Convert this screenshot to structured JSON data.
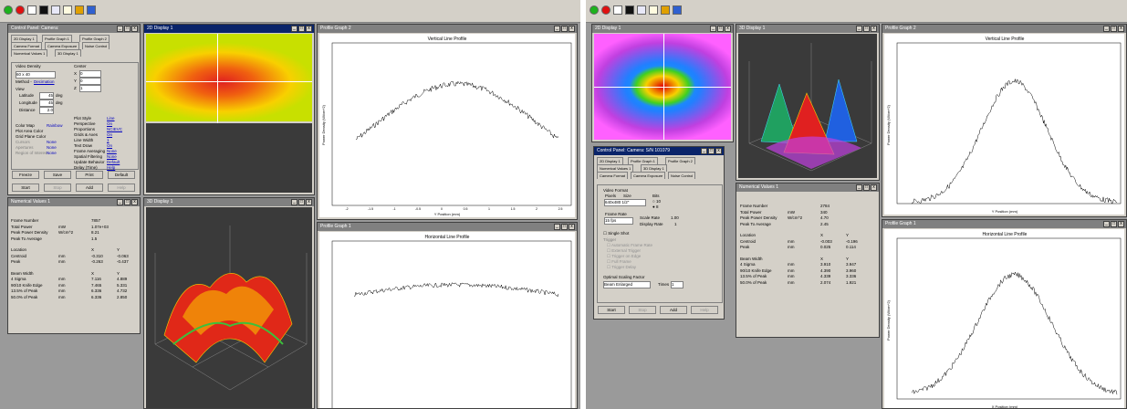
{
  "left": {
    "windows": {
      "control": "Control Panel: Camera: ",
      "display2d": "2D Display 1",
      "profile_top": "Profile Graph 2",
      "numeric": "Numerical Values 1",
      "display3d": "3D Display 1",
      "profile_bottom": "Profile Graph 1"
    },
    "tabs_row1": [
      "2D Display 1",
      "Profile Graph 1",
      "Profile Graph 2"
    ],
    "tabs_row2": [
      "Camera Format",
      "Camera Exposure",
      "Noise Control"
    ],
    "tabs_row3": [
      "Numerical Values 1",
      "3D Display 1"
    ],
    "control": {
      "video_density_label": "Video Density",
      "video_density_value": "60 x 40",
      "method_label": "Method -",
      "method_value": "Decimation",
      "view_label": "View",
      "latitude_label": "Latitude",
      "latitude_value": "45",
      "longitude_label": "Longitude",
      "longitude_value": "45",
      "distance_label": "Distance",
      "distance_value": "2.0",
      "deg": "deg",
      "center_label": "Center",
      "x_label": "X",
      "x_value": "0",
      "y_label": "Y",
      "y_value": "0",
      "z_label": "Z",
      "z_value": "1",
      "right_opts": [
        {
          "label": "Plot Style",
          "value": "Line"
        },
        {
          "label": "Perspective",
          "value": "On"
        },
        {
          "label": "Proportions",
          "value": "NCIEVC"
        },
        {
          "label": "Grids & Axes",
          "value": "On"
        },
        {
          "label": "Line Width",
          "value": "1"
        },
        {
          "label": "Text Draw",
          "value": "On"
        },
        {
          "label": "Frame Averaging",
          "value": "None"
        },
        {
          "label": "Spatial Filtering",
          "value": "None"
        },
        {
          "label": "Update Behavior",
          "value": "Default"
        },
        {
          "label": "Delay (Time)",
          "value": "Help"
        }
      ],
      "left_opts": [
        {
          "label": "Color Map",
          "value": "Rainbow"
        },
        {
          "label": "Plot Area Color",
          "value": ""
        },
        {
          "label": "Grid Plane Color",
          "value": ""
        },
        {
          "label": "Cursors",
          "value": "None"
        },
        {
          "label": "Apertures",
          "value": "None"
        },
        {
          "label": "Region of Interest",
          "value": "None"
        }
      ],
      "buttons_row1": [
        "Freeze",
        "Save",
        "Print",
        "Default"
      ],
      "buttons_row2": [
        "Start",
        "Stop",
        "Add",
        "Help"
      ]
    },
    "numeric": {
      "rows": [
        {
          "label": "Frame Number",
          "unit": "",
          "x": "7857",
          "y": ""
        },
        {
          "label": "Total Power",
          "unit": "mW",
          "x": "1.07e+03",
          "y": ""
        },
        {
          "label": "Peak Power Density",
          "unit": "W/cm^2",
          "x": "8.21",
          "y": ""
        },
        {
          "label": "Peak To Average",
          "unit": "",
          "x": "1.5",
          "y": ""
        },
        {
          "label": "Location",
          "unit": "",
          "x": "X",
          "y": "Y"
        },
        {
          "label": "Centroid",
          "unit": "mm",
          "x": "-0.310",
          "y": "-0.063"
        },
        {
          "label": "Peak",
          "unit": "mm",
          "x": "-0.263",
          "y": "-0.437"
        },
        {
          "label": "Beam Width",
          "unit": "",
          "x": "X",
          "y": "Y"
        },
        {
          "label": "4 Sigma",
          "unit": "mm",
          "x": "7.116",
          "y": "4.889"
        },
        {
          "label": "90/10 Knife Edge",
          "unit": "mm",
          "x": "7.465",
          "y": "5.331"
        },
        {
          "label": "13.5% of Peak",
          "unit": "mm",
          "x": "6.336",
          "y": "4.732"
        },
        {
          "label": "50.0% of Peak",
          "unit": "mm",
          "x": "6.336",
          "y": "2.850"
        }
      ]
    },
    "profile_top": {
      "title": "Vertical Line Profile",
      "xlabel": "Y Position (mm)",
      "ylabel": "Power Density (W/cm^2)",
      "xticks": [
        "-2",
        "-1.5",
        "-1",
        "-0.5",
        "0",
        "0.5",
        "1",
        "1.5",
        "2",
        "2.5"
      ]
    },
    "profile_bottom": {
      "title": "Horizontal Line Profile"
    }
  },
  "right": {
    "windows": {
      "display2d": "2D Display 1",
      "display3d": "3D Display 1",
      "profile_top": "Profile Graph 2",
      "control": "Control Panel: Camera: S/N 101079",
      "numeric": "Numerical Values 1",
      "profile_bottom": "Profile Graph 1"
    },
    "tabs_row1": [
      "2D Display 1",
      "Profile Graph 1",
      "Profile Graph 2"
    ],
    "tabs_row2": [
      "Numerical Values 1",
      "3D Display 1"
    ],
    "tabs_row3": [
      "Camera Format",
      "Camera Exposure",
      "Noise Control"
    ],
    "control": {
      "video_format_label": "Video Format",
      "pixels_label": "Pixels",
      "size_label": "Size",
      "pixels_value": "640x480",
      "size_value": "1/2\"",
      "bits_label": "Bits",
      "bits_10": "10",
      "bits_8": "8",
      "frame_rate_label": "Frame Rate",
      "frame_rate_value": "15 fps",
      "scale_rate_label": "Scale Rate",
      "scale_rate_value": "1.00",
      "display_rate_label": "Display Rate",
      "display_rate_value": "1",
      "single_shot": "Single Shot",
      "trigger": "Trigger",
      "grey_opts": [
        "Automatic Frame Rate",
        "External Trigger",
        "Trigger on Edge",
        "Full Frame",
        "Trigger Delay"
      ],
      "optimal_label": "Optimal Scaling Factor",
      "beam_enlarged": "Beam Enlarged",
      "times_label": "Times",
      "times_value": "1",
      "buttons": [
        "Start",
        "Stop",
        "Add",
        "Help"
      ]
    },
    "numeric": {
      "rows": [
        {
          "label": "Frame Number",
          "unit": "",
          "x": "2784",
          "y": ""
        },
        {
          "label": "Total Power",
          "unit": "mW",
          "x": "340",
          "y": ""
        },
        {
          "label": "Peak Power Density",
          "unit": "W/cm^2",
          "x": "4.70",
          "y": ""
        },
        {
          "label": "Peak To Average",
          "unit": "",
          "x": "2.45",
          "y": ""
        },
        {
          "label": "Location",
          "unit": "",
          "x": "X",
          "y": "Y"
        },
        {
          "label": "Centroid",
          "unit": "mm",
          "x": "-0.003",
          "y": "-0.196"
        },
        {
          "label": "Peak",
          "unit": "mm",
          "x": "0.025",
          "y": "0.114"
        },
        {
          "label": "Beam Width",
          "unit": "",
          "x": "X",
          "y": "Y"
        },
        {
          "label": "4 Sigma",
          "unit": "mm",
          "x": "3.910",
          "y": "3.947"
        },
        {
          "label": "90/10 Knife Edge",
          "unit": "mm",
          "x": "4.390",
          "y": "3.960"
        },
        {
          "label": "13.5% of Peak",
          "unit": "mm",
          "x": "4.339",
          "y": "3.336"
        },
        {
          "label": "50.0% of Peak",
          "unit": "mm",
          "x": "2.074",
          "y": "1.921"
        }
      ]
    },
    "profile_top": {
      "title": "Vertical Line Profile",
      "xlabel": "Y Position (mm)",
      "ylabel": "Power Density (W/cm^2)"
    },
    "profile_bottom": {
      "title": "Horizontal Line Profile",
      "xlabel": "X Position (mm)",
      "ylabel": "Power Density (W/cm^2)"
    }
  },
  "colors": {
    "title_active": "#0a246a",
    "title_inactive": "#808080",
    "face": "#d4d0c8",
    "desktop": "#9a9a9a"
  }
}
